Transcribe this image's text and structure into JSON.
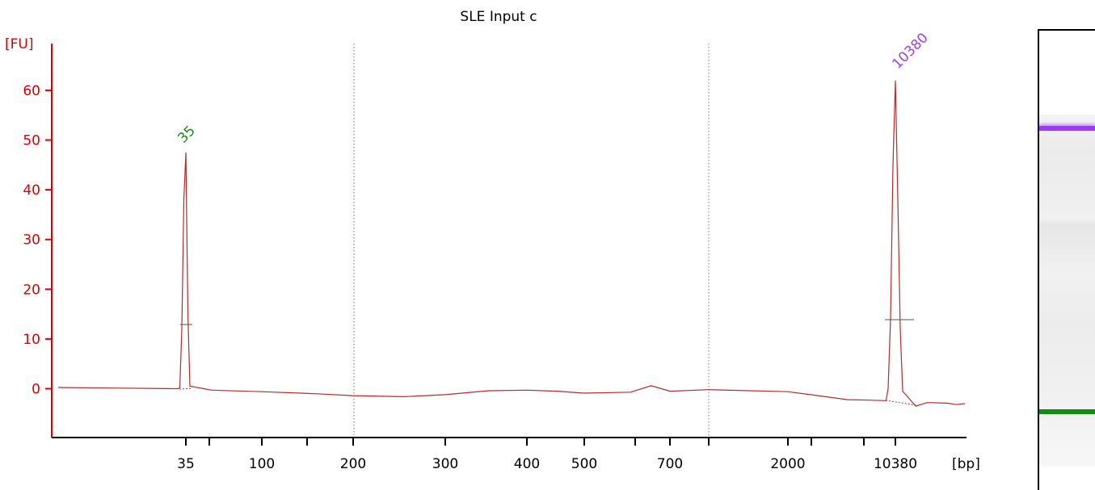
{
  "colors": {
    "axis": "#dd0000",
    "trace": "#b52a2a",
    "ladder_peak_label": "#1a8a1a",
    "upper_peak_label": "#a040e0",
    "marker_line": "#2a6a4a",
    "divider": "#7a7a7a",
    "band_upper": "#9b3cf0",
    "band_lower": "#138a13"
  },
  "chart_data": {
    "type": "line",
    "title": "SLE Input c",
    "ylabel": "[FU]",
    "xlabel": "[bp]",
    "ylim": [
      -9,
      68
    ],
    "y_ticks": [
      0,
      10,
      20,
      30,
      40,
      50,
      60
    ],
    "x_tick_labels": [
      "35",
      "100",
      "200",
      "300",
      "400",
      "500",
      "700",
      "2000",
      "10380"
    ],
    "peaks": [
      {
        "label": "35",
        "x": "35",
        "height": 47.5
      },
      {
        "label": "10380",
        "x": "10380",
        "height": 62
      }
    ],
    "series": [
      {
        "x_bp": [
          35,
          35,
          35,
          35,
          35,
          35,
          35,
          50,
          100,
          150,
          200,
          250,
          300,
          350,
          400,
          450,
          500,
          600,
          650,
          700,
          1000,
          2000,
          3000,
          5000,
          7000,
          9000,
          10380,
          10380,
          10380,
          10380,
          10380,
          10380,
          10380,
          12000,
          13000,
          15000,
          16000,
          17000
        ],
        "y": [
          0,
          0.2,
          12,
          38,
          47.5,
          15,
          0.5,
          -0.3,
          -0.6,
          -1.0,
          -1.4,
          -1.6,
          -1.2,
          -0.4,
          -0.3,
          -0.5,
          -0.9,
          -0.7,
          0.6,
          -0.5,
          -0.2,
          -0.6,
          -1.3,
          -2.2,
          -2.3,
          -2.4,
          0,
          14,
          45,
          62,
          38,
          12,
          -0.5,
          -3.5,
          -2.8,
          -2.9,
          -3.2,
          -3.0
        ]
      }
    ]
  },
  "gel_panel": {
    "upper_band": "10380",
    "lower_band": "35"
  }
}
